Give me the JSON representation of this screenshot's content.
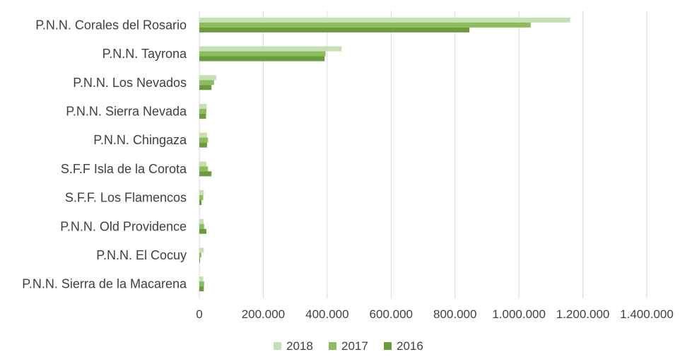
{
  "chart_data": {
    "type": "bar",
    "orientation": "horizontal",
    "title": "",
    "xlabel": "",
    "ylabel": "",
    "categories": [
      "P.N.N. Corales del Rosario",
      "P.N.N. Tayrona",
      "P.N.N. Los Nevados",
      "P.N.N. Sierra Nevada",
      "P.N.N. Chingaza",
      "S.F.F Isla de la Corota",
      "S.F.F. Los Flamencos",
      "P.N.N. Old Providence",
      "P.N.N. El Cocuy",
      "P.N.N. Sierra de la Macarena"
    ],
    "series": [
      {
        "name": "2018",
        "color": "#c5e0b3",
        "values": [
          1160000,
          445000,
          53000,
          23000,
          24000,
          22000,
          14000,
          13000,
          14000,
          12000
        ]
      },
      {
        "name": "2017",
        "color": "#8dbd5a",
        "values": [
          1037000,
          395000,
          46000,
          22000,
          27000,
          27000,
          12000,
          15000,
          6000,
          15000
        ]
      },
      {
        "name": "2016",
        "color": "#6a9c39",
        "values": [
          845000,
          392000,
          38000,
          21000,
          24000,
          38000,
          7000,
          22000,
          2000,
          14000
        ]
      }
    ],
    "xlim": [
      0,
      1400000
    ],
    "xticks": [
      "0",
      "200.000",
      "400.000",
      "600.000",
      "800.000",
      "1.000.000",
      "1.200.000",
      "1.400.000"
    ],
    "grid": "vertical",
    "legend_position": "bottom"
  }
}
